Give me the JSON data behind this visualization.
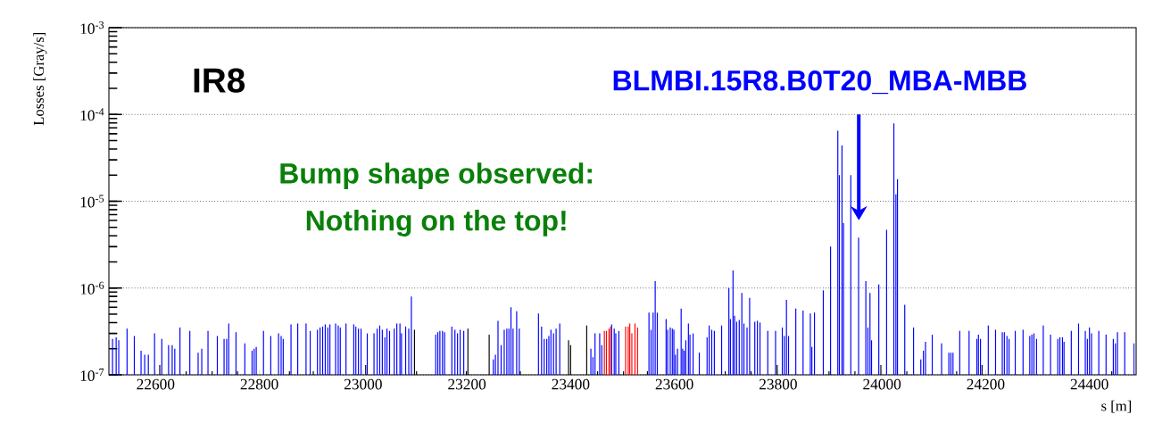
{
  "chart_data": {
    "type": "bar",
    "ylabel": "Losses [Gray/s]",
    "xlabel": "s [m]",
    "log": "y",
    "grid": "y",
    "xlim": [
      22510,
      24490
    ],
    "ylim": [
      1e-07,
      0.001
    ],
    "xticks": [
      22600,
      22800,
      23000,
      23200,
      23400,
      23600,
      23800,
      24000,
      24200,
      24400
    ],
    "yticks": [
      {
        "value": 1e-07,
        "label": "10$^{-7}$"
      },
      {
        "value": 1e-06,
        "label": "10$^{-6}$"
      },
      {
        "value": 1e-05,
        "label": "10$^{-5}$"
      },
      {
        "value": 0.0001,
        "label": "10$^{-4}$"
      },
      {
        "value": 0.001,
        "label": "10$^{-3}$"
      }
    ],
    "annotations": [
      "IR8",
      "BLMBI.15R8.B0T20_MBA-MBB",
      "Bump shape observed:",
      "Nothing on the top!"
    ],
    "series": [
      {
        "color": "#0000ff",
        "x": [
          22517,
          22524,
          22529,
          22545,
          22559,
          22572,
          22579,
          22586,
          22598,
          22612,
          22625,
          22632,
          22637,
          22647,
          22666,
          22682,
          22689,
          22701,
          22719,
          22732,
          22737,
          22741,
          22755,
          22772,
          22786,
          22790,
          22794,
          22808,
          22822,
          22837,
          22842,
          22846,
          22861,
          22874,
          22890,
          22898,
          22912,
          22917,
          22922,
          22927,
          22932,
          22936,
          22947,
          22952,
          22956,
          22967,
          22982,
          22986,
          22991,
          22996,
          23008,
          23021,
          23027,
          23032,
          23037,
          23042,
          23046,
          23051,
          23060,
          23065,
          23071,
          23074,
          23082,
          23088,
          23093,
          23140,
          23144,
          23148,
          23153,
          23157,
          23171,
          23177,
          23182,
          23187,
          23194,
          23251,
          23255,
          23260,
          23266,
          23272,
          23277,
          23281,
          23285,
          23289,
          23296,
          23301,
          23338,
          23344,
          23349,
          23354,
          23358,
          23362,
          23367,
          23372,
          23379,
          23439,
          23443,
          23447,
          23456,
          23460,
          23479,
          23484,
          23487,
          23493,
          23551,
          23555,
          23559,
          23563,
          23567,
          23584,
          23587,
          23592,
          23596,
          23599,
          23602,
          23606,
          23613,
          23616,
          23619,
          23622,
          23627,
          23630,
          23636,
          23648,
          23663,
          23667,
          23672,
          23677,
          23691,
          23705,
          23708,
          23713,
          23716,
          23720,
          23725,
          23730,
          23734,
          23740,
          23745,
          23755,
          23760,
          23765,
          23780,
          23795,
          23808,
          23812,
          23816,
          23820,
          23834,
          23848,
          23862,
          23865,
          23870,
          23887,
          23901,
          23915,
          23918,
          23923,
          23926,
          23940,
          23955,
          23969,
          23973,
          23977,
          23980,
          23994,
          24009,
          24023,
          24027,
          24030,
          24044,
          24061,
          24075,
          24080,
          24084,
          24097,
          24115,
          24129,
          24133,
          24137,
          24150,
          24168,
          24183,
          24186,
          24190,
          24205,
          24219,
          24232,
          24236,
          24241,
          24245,
          24257,
          24272,
          24285,
          24289,
          24293,
          24298,
          24311,
          24325,
          24339,
          24343,
          24348,
          24351,
          24365,
          24379,
          24392,
          24396,
          24400,
          24404,
          24418,
          24432,
          24446,
          24450,
          24454,
          24468,
          24486
        ],
        "values": [
          2.6e-07,
          2.7e-07,
          2.5e-07,
          3.4e-07,
          2.8e-07,
          1.9e-07,
          1.7e-07,
          1.7e-07,
          3e-07,
          2.6e-07,
          2.2e-07,
          2.2e-07,
          2e-07,
          3.5e-07,
          3.2e-07,
          1.8e-07,
          2e-07,
          3.2e-07,
          2.8e-07,
          2.6e-07,
          2.6e-07,
          3.9e-07,
          3.1e-07,
          2.3e-07,
          1.9e-07,
          2e-07,
          2.1e-07,
          3.2e-07,
          2.8e-07,
          3e-07,
          2.8e-07,
          2.6e-07,
          3.8e-07,
          3.9e-07,
          3.9e-07,
          3.2e-07,
          3.3e-07,
          3.5e-07,
          3.6e-07,
          3.8e-07,
          3.5e-07,
          3.8e-07,
          3.9e-07,
          3.7e-07,
          3.5e-07,
          3.9e-07,
          3.8e-07,
          3.6e-07,
          3.4e-07,
          3.4e-07,
          3e-07,
          3e-07,
          3.4e-07,
          3.7e-07,
          3.3e-07,
          2.7e-07,
          3.4e-07,
          3.2e-07,
          3.4e-07,
          3.9e-07,
          3.9e-07,
          3e-07,
          3.6e-07,
          3.4e-07,
          8e-07,
          2.9e-07,
          3.1e-07,
          3.2e-07,
          3.2e-07,
          3.1e-07,
          3.6e-07,
          3.3e-07,
          3e-07,
          3.3e-07,
          3.2e-07,
          1.5e-07,
          1.7e-07,
          4.2e-07,
          2.2e-07,
          3.3e-07,
          3.4e-07,
          3.4e-07,
          6e-07,
          3.4e-07,
          5.4e-07,
          3.4e-07,
          5.1e-07,
          3.6e-07,
          2.6e-07,
          2.6e-07,
          2.8e-07,
          3.3e-07,
          3e-07,
          3.4e-07,
          3.9e-07,
          2e-07,
          1.6e-07,
          3e-07,
          3e-07,
          2.2e-07,
          3.8e-07,
          3.4e-07,
          3e-07,
          3.2e-07,
          5.2e-07,
          3.3e-07,
          5.2e-07,
          1.2e-06,
          5.2e-07,
          4.4e-07,
          3.3e-07,
          3.5e-07,
          3.4e-07,
          3.3e-07,
          1.7e-07,
          2e-07,
          5.8e-07,
          2e-07,
          1.9e-07,
          2.5e-07,
          3.9e-07,
          2.9e-07,
          3e-07,
          1.8e-07,
          2.7e-07,
          3.7e-07,
          3.3e-07,
          3.2e-07,
          3.7e-07,
          1e-06,
          4.4e-07,
          1.6e-06,
          4.8e-07,
          4.1e-07,
          4.3e-07,
          8.8e-07,
          3.9e-07,
          3.5e-07,
          7.7e-07,
          4.1e-07,
          4.2e-07,
          4e-07,
          3.2e-07,
          3.2e-07,
          3.5e-07,
          2.8e-07,
          7.3e-07,
          2.8e-07,
          5.8e-07,
          5.5e-07,
          5.1e-07,
          2.1e-07,
          5.2e-07,
          9.4e-07,
          3e-06,
          6.5e-05,
          2e-05,
          4.4e-05,
          5.6e-06,
          2e-05,
          3.8e-06,
          1.2e-06,
          3.5e-07,
          8.8e-07,
          2.5e-07,
          1.1e-06,
          4.7e-06,
          7.9e-05,
          1.2e-05,
          1.8e-05,
          6.4e-07,
          3.5e-07,
          1.5e-07,
          1.9e-07,
          2.4e-07,
          2.9e-07,
          2.3e-07,
          1.8e-07,
          1.8e-07,
          1.8e-07,
          3.2e-07,
          3.2e-07,
          2.6e-07,
          2.9e-07,
          2.6e-07,
          3.7e-07,
          3.3e-07,
          3.1e-07,
          3.1e-07,
          2.8e-07,
          2.6e-07,
          3.2e-07,
          3.3e-07,
          2.8e-07,
          2.9e-07,
          3e-07,
          2.6e-07,
          3.7e-07,
          2.9e-07,
          2.6e-07,
          2.7e-07,
          2.7e-07,
          2.4e-07,
          3.2e-07,
          3.9e-07,
          3.2e-07,
          2.6e-07,
          3.5e-07,
          3e-07,
          3.2e-07,
          2.9e-07,
          2.6e-07,
          2.3e-07,
          3.1e-07,
          3.1e-07,
          2.3e-07
        ]
      },
      {
        "color": "#ff0000",
        "x": [
          23465,
          23469,
          23474,
          23477,
          23506,
          23511,
          23514,
          23518,
          23524,
          23529
        ],
        "values": [
          3.2e-07,
          3.2e-07,
          3.4e-07,
          3.6e-07,
          3.6e-07,
          3.6e-07,
          3.9e-07,
          3e-07,
          3.9e-07,
          3.5e-07
        ]
      },
      {
        "color": "#000000",
        "x": [
          22608,
          22659,
          22709,
          22758,
          22858,
          22904,
          23005,
          23099,
          23103,
          23199,
          23202,
          23243,
          23303,
          23396,
          23400,
          23431,
          23452,
          23502,
          23548,
          23698,
          23748,
          23798,
          23898,
          23948,
          23998,
          24048,
          24144,
          24193,
          24443
        ],
        "values": [
          1.3e-07,
          1.1e-07,
          1.1e-07,
          1.1e-07,
          1.1e-07,
          1.1e-07,
          1.3e-07,
          3.3e-07,
          1.1e-07,
          1.1e-07,
          3.4e-07,
          2.9e-07,
          1.1e-07,
          2.5e-07,
          2.2e-07,
          3.7e-07,
          1.1e-07,
          1.1e-07,
          1.1e-07,
          1.1e-07,
          1.1e-07,
          1.3e-07,
          1.1e-07,
          1.1e-07,
          1.3e-07,
          1.1e-07,
          1.1e-07,
          1.3e-07,
          1.1e-07
        ]
      }
    ]
  }
}
